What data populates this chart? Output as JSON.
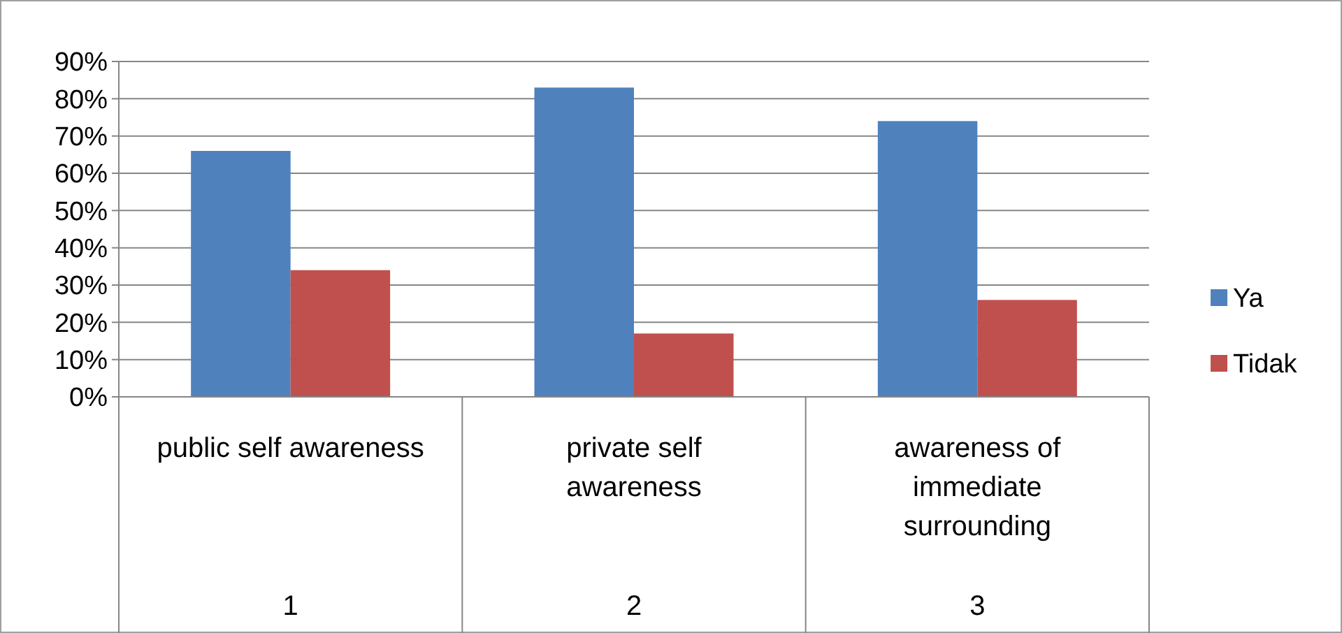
{
  "chart_data": {
    "type": "bar",
    "categories": [
      "public self awareness",
      "private self awareness",
      "awareness of immediate surrounding"
    ],
    "series": [
      {
        "name": "Ya",
        "color": "#4f81bd",
        "values": [
          66,
          83,
          74
        ]
      },
      {
        "name": "Tidak",
        "color": "#c0504d",
        "values": [
          34,
          17,
          26
        ]
      }
    ],
    "ylim": [
      0,
      90
    ],
    "yticks": [
      {
        "value": 0,
        "label": "0%"
      },
      {
        "value": 10,
        "label": "10%"
      },
      {
        "value": 20,
        "label": "20%"
      },
      {
        "value": 30,
        "label": "30%"
      },
      {
        "value": 40,
        "label": "40%"
      },
      {
        "value": 50,
        "label": "50%"
      },
      {
        "value": 60,
        "label": "60%"
      },
      {
        "value": 70,
        "label": "70%"
      },
      {
        "value": 80,
        "label": "80%"
      },
      {
        "value": 90,
        "label": "90%"
      }
    ],
    "grid": "y",
    "legend": "right",
    "annotations": [
      "1",
      "2",
      "3"
    ]
  }
}
